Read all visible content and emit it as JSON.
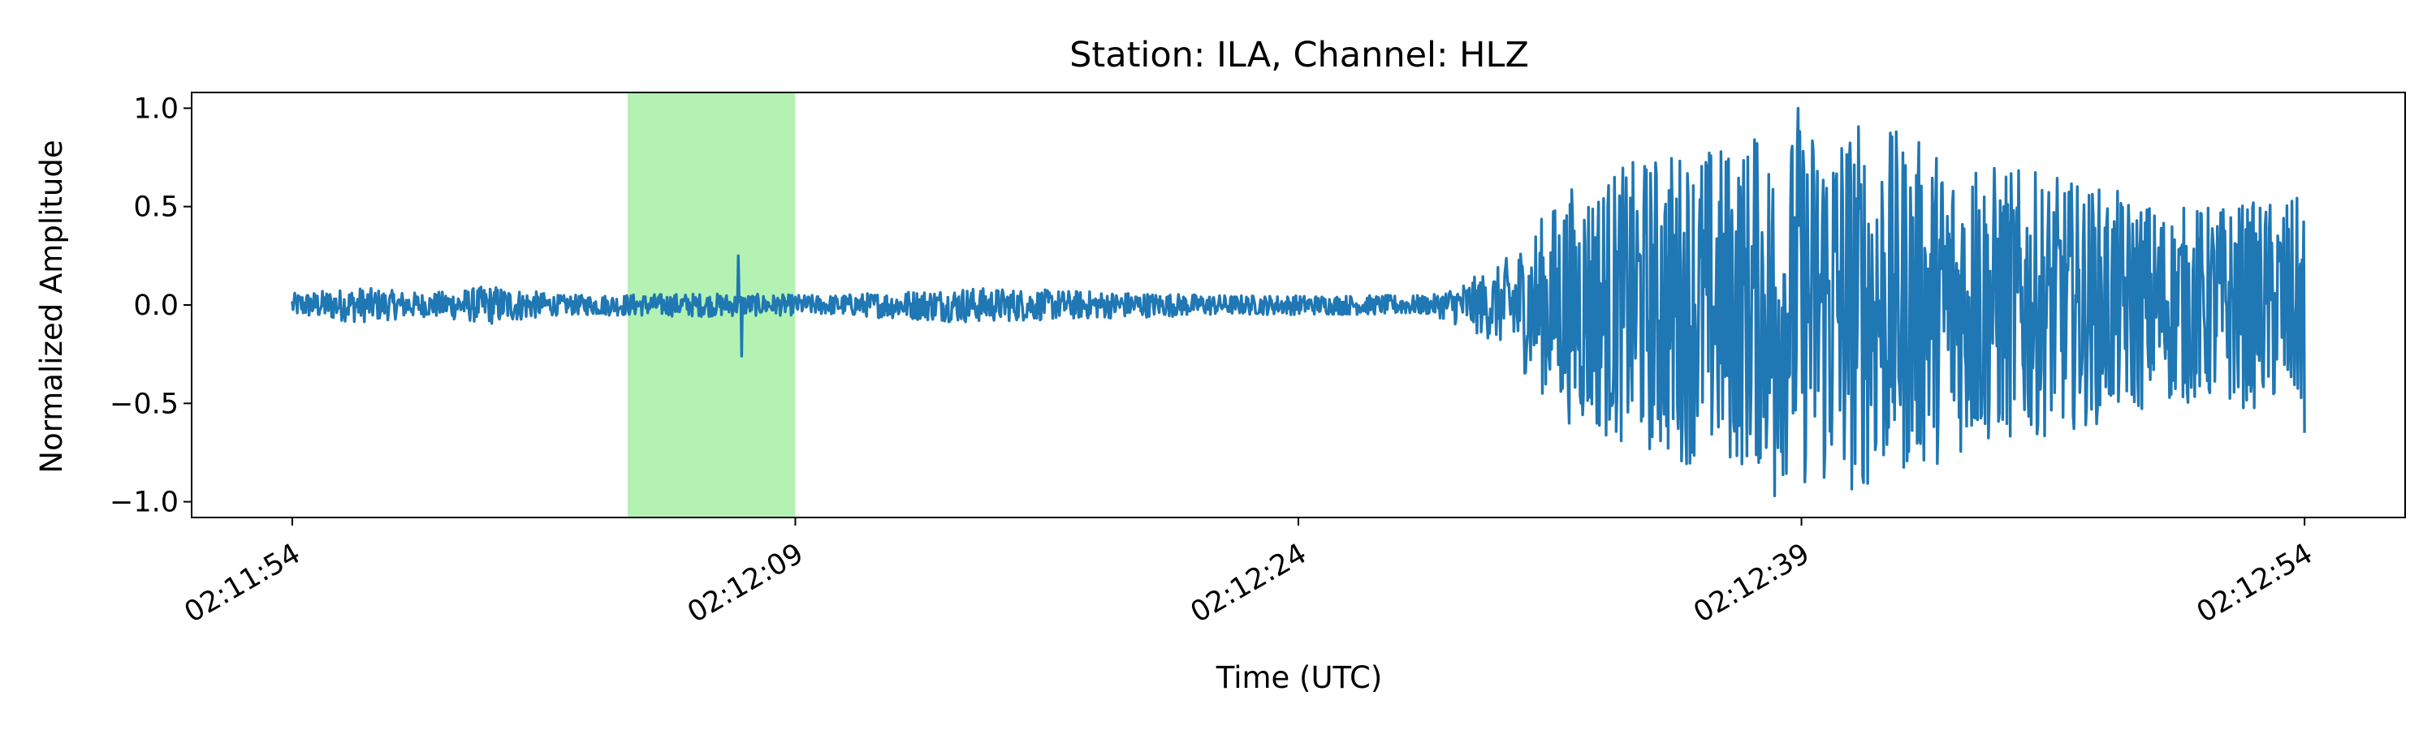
{
  "chart_data": {
    "type": "line",
    "title": "Station: ILA, Channel: HLZ",
    "xlabel": "Time (UTC)",
    "ylabel": "Normalized Amplitude",
    "x_range": [
      "02:11:51",
      "02:12:57"
    ],
    "ylim": [
      -1.08,
      1.08
    ],
    "grid": false,
    "legend": "none",
    "x_ticks": [
      "02:11:54",
      "02:12:09",
      "02:12:24",
      "02:12:39",
      "02:12:54"
    ],
    "y_ticks": [
      {
        "value": 1.0,
        "label": "1.0"
      },
      {
        "value": 0.5,
        "label": "0.5"
      },
      {
        "value": 0.0,
        "label": "0.0"
      },
      {
        "value": -0.5,
        "label": "−0.5"
      },
      {
        "value": -1.0,
        "label": "−1.0"
      }
    ],
    "highlight_span": {
      "start": "02:12:04",
      "end": "02:12:09",
      "color": "#b3f2b3"
    },
    "series": [
      {
        "color": "#1f77b4",
        "time_start": "02:11:54",
        "time_end": "02:12:54",
        "envelope": [
          {
            "t": "02:11:54",
            "amp": 0.06
          },
          {
            "t": "02:11:56",
            "amp": 0.09
          },
          {
            "t": "02:11:58",
            "amp": 0.06
          },
          {
            "t": "02:12:00",
            "amp": 0.1
          },
          {
            "t": "02:12:02",
            "amp": 0.05
          },
          {
            "t": "02:12:06",
            "amp": 0.06
          },
          {
            "t": "02:12:10",
            "amp": 0.05
          },
          {
            "t": "02:12:14",
            "amp": 0.09
          },
          {
            "t": "02:12:18",
            "amp": 0.07
          },
          {
            "t": "02:12:22",
            "amp": 0.05
          },
          {
            "t": "02:12:28",
            "amp": 0.05
          },
          {
            "t": "02:12:30",
            "amp": 0.2
          },
          {
            "t": "02:12:32",
            "amp": 0.6
          },
          {
            "t": "02:12:35",
            "amp": 0.8
          },
          {
            "t": "02:12:38",
            "amp": 0.85
          },
          {
            "t": "02:12:40",
            "amp": 1.0
          },
          {
            "t": "02:12:44",
            "amp": 0.75
          },
          {
            "t": "02:12:48",
            "amp": 0.6
          },
          {
            "t": "02:12:50",
            "amp": 0.5
          },
          {
            "t": "02:12:54",
            "amp": 0.55
          }
        ],
        "peaks": [
          {
            "t": "02:12:07.3",
            "value": 0.25
          },
          {
            "t": "02:12:07.4",
            "value": -0.26
          },
          {
            "t": "02:12:37.6",
            "value": 0.84
          },
          {
            "t": "02:12:38.2",
            "value": -0.97
          },
          {
            "t": "02:12:38.9",
            "value": 1.0
          },
          {
            "t": "02:12:44.2",
            "value": 0.67
          },
          {
            "t": "02:12:54",
            "value": -0.65
          }
        ]
      }
    ]
  }
}
